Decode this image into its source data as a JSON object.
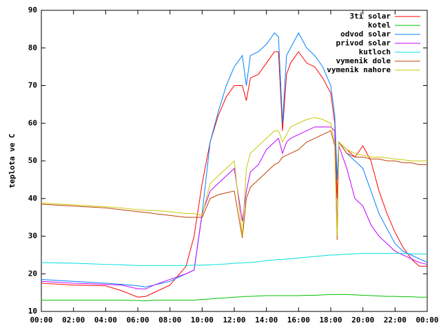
{
  "chart_data": {
    "type": "line",
    "y_label": "teplota ve C",
    "x": [
      0,
      2,
      4,
      5,
      6,
      6.5,
      7,
      8,
      9,
      9.5,
      10,
      10.5,
      11,
      11.5,
      12,
      12.5,
      12.75,
      13,
      13.5,
      14,
      14.5,
      14.75,
      15,
      15.25,
      15.5,
      16,
      16.5,
      17,
      17.5,
      18,
      18.25,
      18.4,
      18.5,
      19,
      19.5,
      20,
      20.5,
      21,
      21.5,
      22,
      22.5,
      23,
      23.5,
      24
    ],
    "xlim": [
      0,
      24
    ],
    "xticks": [
      {
        "value": 0,
        "label": "00:00"
      },
      {
        "value": 2,
        "label": "02:00"
      },
      {
        "value": 4,
        "label": "04:00"
      },
      {
        "value": 6,
        "label": "06:00"
      },
      {
        "value": 8,
        "label": "08:00"
      },
      {
        "value": 10,
        "label": "10:00"
      },
      {
        "value": 12,
        "label": "12:00"
      },
      {
        "value": 14,
        "label": "14:00"
      },
      {
        "value": 16,
        "label": "16:00"
      },
      {
        "value": 18,
        "label": "18:00"
      },
      {
        "value": 20,
        "label": "20:00"
      },
      {
        "value": 22,
        "label": "22:00"
      },
      {
        "value": 24,
        "label": "00:00"
      }
    ],
    "ylim": [
      10,
      90
    ],
    "yticks": [
      10,
      20,
      30,
      40,
      50,
      60,
      70,
      80,
      90
    ],
    "legend": "top-right",
    "series": [
      {
        "name": "3ti solar",
        "color": "#ff0000",
        "values": [
          17.5,
          17,
          16.8,
          15.5,
          13.8,
          14,
          15,
          17,
          22,
          30,
          44,
          55,
          62,
          67,
          70,
          70,
          66,
          72,
          73,
          76,
          79,
          79,
          58,
          73,
          76,
          79,
          76,
          75,
          72,
          68,
          60,
          40,
          55,
          53,
          51,
          54,
          50,
          42,
          36,
          31,
          27,
          24,
          22,
          22
        ]
      },
      {
        "name": "kotel",
        "color": "#00c000",
        "values": [
          13,
          13,
          13,
          13,
          12.9,
          12.8,
          13,
          13,
          13,
          13,
          13.2,
          13.3,
          13.5,
          13.6,
          13.8,
          13.9,
          14,
          14,
          14.1,
          14.2,
          14.2,
          14.2,
          14.2,
          14.2,
          14.2,
          14.2,
          14.3,
          14.3,
          14.4,
          14.5,
          14.5,
          14.5,
          14.5,
          14.5,
          14.4,
          14.3,
          14.2,
          14.1,
          14,
          14,
          13.9,
          13.9,
          13.8,
          13.8
        ]
      },
      {
        "name": "odvod solar",
        "color": "#0080ff",
        "values": [
          18.5,
          18,
          17.5,
          17.2,
          16.8,
          16.5,
          17,
          18,
          20,
          21,
          36,
          55,
          63,
          70,
          75,
          78,
          70,
          78,
          79,
          81,
          84,
          83,
          60,
          78,
          80,
          84,
          80,
          78,
          75,
          70,
          62,
          45,
          55,
          52,
          50,
          48,
          42,
          36,
          32,
          28,
          26,
          25,
          24,
          23
        ]
      },
      {
        "name": "privod solar",
        "color": "#c000ff",
        "values": [
          18,
          17.5,
          17.2,
          17,
          16,
          16,
          17,
          18.5,
          20,
          21,
          36,
          42,
          44,
          46,
          48,
          34,
          42,
          47,
          49,
          53,
          55,
          56,
          52,
          55,
          56,
          57,
          58,
          59,
          59,
          59,
          58,
          32,
          54,
          48,
          40,
          38,
          33,
          30,
          28,
          26,
          25,
          24,
          23,
          22.5
        ]
      },
      {
        "name": "kutloch",
        "color": "#00dddd",
        "values": [
          23,
          22.8,
          22.5,
          22.4,
          22.2,
          22.2,
          22.2,
          22.2,
          22.2,
          22.3,
          22.3,
          22.4,
          22.5,
          22.6,
          22.8,
          22.9,
          23,
          23,
          23.2,
          23.5,
          23.7,
          23.8,
          23.8,
          23.9,
          24,
          24.2,
          24.4,
          24.6,
          24.8,
          25,
          25,
          25,
          25.1,
          25.2,
          25.3,
          25.4,
          25.4,
          25.4,
          25.4,
          25.4,
          25.4,
          25.3,
          25.3,
          25.2
        ]
      },
      {
        "name": "vymenik dole",
        "color": "#c04000",
        "values": [
          38.5,
          38,
          37.5,
          37,
          36.5,
          36.3,
          36,
          35.5,
          35,
          35,
          35,
          40,
          41,
          41.5,
          42,
          29.5,
          40,
          43,
          45,
          47,
          49,
          49.5,
          51,
          51.5,
          52,
          53,
          55,
          56,
          57,
          58,
          54,
          29,
          55,
          52,
          51,
          51,
          50.5,
          50.5,
          50,
          50,
          49.5,
          49.5,
          49,
          49
        ]
      },
      {
        "name": "vymenik nahore",
        "color": "#c8c800",
        "values": [
          38.8,
          38.3,
          37.8,
          37.5,
          37,
          36.9,
          36.8,
          36.5,
          36,
          36,
          35.5,
          44,
          46,
          48,
          50,
          30,
          48,
          52,
          54,
          56,
          58,
          58,
          55,
          57,
          59,
          60,
          61,
          61.5,
          61,
          60,
          55,
          30,
          55,
          53,
          52,
          51.5,
          51,
          51,
          50.8,
          50.5,
          50.3,
          50,
          50,
          50
        ]
      }
    ]
  }
}
